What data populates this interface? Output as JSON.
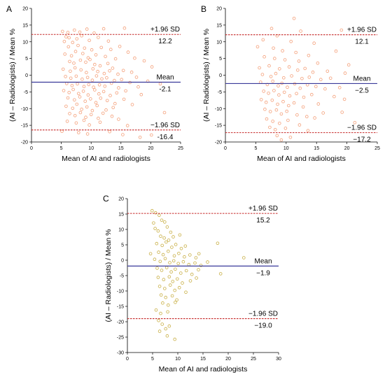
{
  "colors": {
    "axis": "#000000",
    "mean_line": "#3a3a9a",
    "panel_A_points": "#f4a07a",
    "panel_B_points": "#f4a07a",
    "panel_C_points": "#c9b048"
  },
  "chart_data": [
    {
      "panel_label": "A",
      "type": "scatter",
      "xlabel": "Mean of AI and radiologists",
      "ylabel": "(AI – Radiologists) / Mean %",
      "xlim": [
        0,
        25
      ],
      "ylim": [
        -20,
        20
      ],
      "xticks": [
        0,
        5,
        10,
        15,
        20,
        25
      ],
      "yticks": [
        -20,
        -15,
        -10,
        -5,
        0,
        5,
        10,
        15,
        20
      ],
      "lines": {
        "upper": {
          "value": 12.2,
          "label": "+1.96 SD",
          "value_text": "12.2"
        },
        "mean": {
          "value": -2.1,
          "label": "Mean",
          "value_text": "-2.1"
        },
        "lower": {
          "value": -16.4,
          "label": "−1.96 SD",
          "value_text": "-16.4"
        }
      },
      "points": [
        [
          5.2,
          13.1
        ],
        [
          6.1,
          12.8
        ],
        [
          5.8,
          11.5
        ],
        [
          7.2,
          13.5
        ],
        [
          8.1,
          12.9
        ],
        [
          9.3,
          13.8
        ],
        [
          10.5,
          12.6
        ],
        [
          12.1,
          13.9
        ],
        [
          15.6,
          14.1
        ],
        [
          6.3,
          11.2
        ],
        [
          5.5,
          10.1
        ],
        [
          6.9,
          9.8
        ],
        [
          7.6,
          10.9
        ],
        [
          8.4,
          11.8
        ],
        [
          9.7,
          10.4
        ],
        [
          11.2,
          11.3
        ],
        [
          12.9,
          10.2
        ],
        [
          6.2,
          8.5
        ],
        [
          7.8,
          8.9
        ],
        [
          8.9,
          8.1
        ],
        [
          10.1,
          7.6
        ],
        [
          11.7,
          8.3
        ],
        [
          13.3,
          7.7
        ],
        [
          14.8,
          8.6
        ],
        [
          16.2,
          6.9
        ],
        [
          5.6,
          6.3
        ],
        [
          6.7,
          5.8
        ],
        [
          7.4,
          7.1
        ],
        [
          8.6,
          6.5
        ],
        [
          9.5,
          5.2
        ],
        [
          10.8,
          6.1
        ],
        [
          12.4,
          5.6
        ],
        [
          14.1,
          4.9
        ],
        [
          17.3,
          5.1
        ],
        [
          18.9,
          4.3
        ],
        [
          20.2,
          2.5
        ],
        [
          6.4,
          4.1
        ],
        [
          7.1,
          3.6
        ],
        [
          8.2,
          4.5
        ],
        [
          9.1,
          3.9
        ],
        [
          9.8,
          4.7
        ],
        [
          10.6,
          3.2
        ],
        [
          11.5,
          2.8
        ],
        [
          12.8,
          3.5
        ],
        [
          13.6,
          2.1
        ],
        [
          15.4,
          1.4
        ],
        [
          5.3,
          1.8
        ],
        [
          6.5,
          1.2
        ],
        [
          7.3,
          2.2
        ],
        [
          8.3,
          1.6
        ],
        [
          9.2,
          0.8
        ],
        [
          10.3,
          1.9
        ],
        [
          11.1,
          1.1
        ],
        [
          12.2,
          0.5
        ],
        [
          13.1,
          1.3
        ],
        [
          14.5,
          0.3
        ],
        [
          16.8,
          0.9
        ],
        [
          17.6,
          -0.6
        ],
        [
          5.7,
          -0.4
        ],
        [
          6.6,
          -0.9
        ],
        [
          7.5,
          -0.3
        ],
        [
          8.5,
          -1.2
        ],
        [
          9.4,
          -0.7
        ],
        [
          10.2,
          -1.5
        ],
        [
          10.9,
          -0.2
        ],
        [
          11.8,
          -1.1
        ],
        [
          12.6,
          -0.8
        ],
        [
          13.9,
          -1.6
        ],
        [
          15.1,
          -1.3
        ],
        [
          16.5,
          -2.2
        ],
        [
          19.5,
          -1.8
        ],
        [
          5.9,
          -2.5
        ],
        [
          6.8,
          -3.1
        ],
        [
          7.7,
          -2.6
        ],
        [
          8.8,
          -3.4
        ],
        [
          9.6,
          -2.8
        ],
        [
          10.4,
          -3.6
        ],
        [
          11.4,
          -2.9
        ],
        [
          12.3,
          -3.3
        ],
        [
          13.4,
          -2.4
        ],
        [
          14.6,
          -3.8
        ],
        [
          17.9,
          -3.5
        ],
        [
          21.6,
          -2.6
        ],
        [
          5.4,
          -4.6
        ],
        [
          6.3,
          -5.2
        ],
        [
          7.0,
          -4.3
        ],
        [
          7.9,
          -5.5
        ],
        [
          8.7,
          -4.8
        ],
        [
          9.5,
          -5.9
        ],
        [
          10.6,
          -4.4
        ],
        [
          11.3,
          -5.6
        ],
        [
          12.1,
          -4.9
        ],
        [
          13.2,
          -6.1
        ],
        [
          14.3,
          -5.3
        ],
        [
          15.8,
          -4.7
        ],
        [
          18.4,
          -5.8
        ],
        [
          6.1,
          -6.8
        ],
        [
          7.2,
          -7.4
        ],
        [
          8.1,
          -6.5
        ],
        [
          9.0,
          -7.8
        ],
        [
          9.9,
          -7.1
        ],
        [
          10.8,
          -8.2
        ],
        [
          11.6,
          -6.9
        ],
        [
          12.7,
          -7.6
        ],
        [
          14.0,
          -8.5
        ],
        [
          15.5,
          -7.2
        ],
        [
          16.9,
          -8.8
        ],
        [
          5.8,
          -9.3
        ],
        [
          6.9,
          -9.9
        ],
        [
          7.6,
          -8.7
        ],
        [
          8.4,
          -10.2
        ],
        [
          9.3,
          -9.5
        ],
        [
          10.2,
          -10.6
        ],
        [
          11.0,
          -9.1
        ],
        [
          12.5,
          -10.4
        ],
        [
          13.7,
          -9.7
        ],
        [
          6.4,
          -11.5
        ],
        [
          7.3,
          -12.1
        ],
        [
          8.2,
          -11.2
        ],
        [
          9.1,
          -12.6
        ],
        [
          10.0,
          -11.8
        ],
        [
          11.2,
          -12.9
        ],
        [
          12.0,
          -11.4
        ],
        [
          13.5,
          -12.3
        ],
        [
          22.3,
          -11.2
        ],
        [
          6.0,
          -13.8
        ],
        [
          7.5,
          -14.3
        ],
        [
          8.8,
          -13.5
        ],
        [
          9.7,
          -14.9
        ],
        [
          11.5,
          -14.1
        ],
        [
          14.6,
          -13.2
        ],
        [
          16.1,
          -15.1
        ],
        [
          5.1,
          -16.8
        ],
        [
          7.9,
          -17.2
        ],
        [
          9.4,
          -17.6
        ],
        [
          13.1,
          -16.9
        ],
        [
          15.3,
          -17.8
        ],
        [
          18.2,
          -18.6
        ],
        [
          20.1,
          -17.9
        ]
      ]
    },
    {
      "panel_label": "B",
      "type": "scatter",
      "xlabel": "Mean of AI and radiologists",
      "ylabel": "(AI – Radiologists) / Mean %",
      "xlim": [
        0,
        25
      ],
      "ylim": [
        -20,
        20
      ],
      "xticks": [
        0,
        5,
        10,
        15,
        20,
        25
      ],
      "yticks": [
        -20,
        -15,
        -10,
        -5,
        0,
        5,
        10,
        15,
        20
      ],
      "lines": {
        "upper": {
          "value": 12.1,
          "label": "+1.96 SD",
          "value_text": "12.1"
        },
        "mean": {
          "value": -2.5,
          "label": "Mean",
          "value_text": "−2.5"
        },
        "lower": {
          "value": -17.2,
          "label": "−1.96 SD",
          "value_text": "−17.2"
        }
      },
      "points": [
        [
          11.3,
          17.0
        ],
        [
          7.6,
          14.0
        ],
        [
          12.4,
          13.2
        ],
        [
          19.1,
          13.5
        ],
        [
          8.5,
          11.8
        ],
        [
          6.2,
          10.6
        ],
        [
          10.8,
          10.1
        ],
        [
          14.6,
          9.6
        ],
        [
          5.3,
          8.5
        ],
        [
          7.9,
          8.1
        ],
        [
          9.4,
          7.3
        ],
        [
          11.6,
          6.8
        ],
        [
          13.7,
          5.9
        ],
        [
          18.2,
          7.2
        ],
        [
          6.4,
          5.5
        ],
        [
          8.1,
          5.0
        ],
        [
          9.8,
          4.6
        ],
        [
          12.1,
          4.2
        ],
        [
          15.2,
          3.6
        ],
        [
          20.3,
          3.1
        ],
        [
          5.6,
          2.2
        ],
        [
          7.2,
          2.8
        ],
        [
          8.9,
          1.9
        ],
        [
          10.5,
          2.5
        ],
        [
          11.9,
          1.5
        ],
        [
          13.1,
          2.0
        ],
        [
          14.4,
          0.9
        ],
        [
          16.8,
          1.2
        ],
        [
          19.7,
          0.6
        ],
        [
          6.1,
          0.2
        ],
        [
          7.5,
          -0.4
        ],
        [
          8.3,
          0.5
        ],
        [
          9.6,
          -0.8
        ],
        [
          10.9,
          -0.2
        ],
        [
          12.6,
          -1.0
        ],
        [
          13.8,
          -0.6
        ],
        [
          15.7,
          -1.3
        ],
        [
          17.3,
          -0.9
        ],
        [
          5.8,
          -2.1
        ],
        [
          6.9,
          -2.8
        ],
        [
          7.8,
          -1.8
        ],
        [
          8.7,
          -3.2
        ],
        [
          9.3,
          -2.4
        ],
        [
          10.2,
          -3.6
        ],
        [
          11.4,
          -2.6
        ],
        [
          12.3,
          -3.9
        ],
        [
          13.5,
          -2.9
        ],
        [
          14.9,
          -3.4
        ],
        [
          16.4,
          -4.1
        ],
        [
          18.8,
          -3.7
        ],
        [
          6.3,
          -4.8
        ],
        [
          7.1,
          -5.4
        ],
        [
          8.0,
          -4.6
        ],
        [
          8.8,
          -5.9
        ],
        [
          9.7,
          -5.1
        ],
        [
          10.6,
          -6.2
        ],
        [
          11.7,
          -5.5
        ],
        [
          12.9,
          -6.6
        ],
        [
          14.2,
          -5.8
        ],
        [
          17.9,
          -6.4
        ],
        [
          5.9,
          -7.3
        ],
        [
          6.7,
          -8.1
        ],
        [
          7.7,
          -7.5
        ],
        [
          8.6,
          -8.7
        ],
        [
          9.5,
          -7.9
        ],
        [
          10.4,
          -9.1
        ],
        [
          11.3,
          -8.3
        ],
        [
          12.8,
          -9.5
        ],
        [
          15.3,
          -8.6
        ],
        [
          19.6,
          -7.2
        ],
        [
          6.5,
          -10.2
        ],
        [
          7.4,
          -10.9
        ],
        [
          8.4,
          -10.4
        ],
        [
          9.2,
          -11.6
        ],
        [
          10.1,
          -10.8
        ],
        [
          11.8,
          -11.9
        ],
        [
          13.4,
          -12.4
        ],
        [
          16.1,
          -11.3
        ],
        [
          6.8,
          -13.1
        ],
        [
          7.8,
          -13.8
        ],
        [
          8.9,
          -14.4
        ],
        [
          10.3,
          -13.5
        ],
        [
          12.2,
          -14.9
        ],
        [
          14.7,
          -12.8
        ],
        [
          19.2,
          -11.1
        ],
        [
          7.3,
          -15.6
        ],
        [
          8.2,
          -16.3
        ],
        [
          9.9,
          -15.9
        ],
        [
          21.3,
          -14.2
        ],
        [
          8.5,
          -18.1
        ],
        [
          9.2,
          -19.4
        ],
        [
          10.7,
          -18.6
        ],
        [
          13.6,
          -16.6
        ]
      ]
    },
    {
      "panel_label": "C",
      "type": "scatter",
      "xlabel": "Mean of AI and radiologists",
      "ylabel": "(AI – Radiologists) / Mean %",
      "xlim": [
        0,
        30
      ],
      "ylim": [
        -30,
        20
      ],
      "xticks": [
        0,
        5,
        10,
        15,
        20,
        25,
        30
      ],
      "yticks": [
        -30,
        -25,
        -20,
        -15,
        -10,
        -5,
        0,
        5,
        10,
        15,
        20
      ],
      "lines": {
        "upper": {
          "value": 15.2,
          "label": "+1.96 SD",
          "value_text": "15.2"
        },
        "mean": {
          "value": -1.9,
          "label": "Mean",
          "value_text": "−1.9"
        },
        "lower": {
          "value": -19.0,
          "label": "−1.96 SD",
          "value_text": "−19.0"
        }
      },
      "points": [
        [
          4.9,
          16.1
        ],
        [
          5.6,
          15.4
        ],
        [
          6.3,
          14.6
        ],
        [
          5.2,
          12.1
        ],
        [
          6.8,
          13.0
        ],
        [
          7.4,
          12.4
        ],
        [
          5.5,
          10.3
        ],
        [
          6.1,
          9.5
        ],
        [
          7.9,
          10.8
        ],
        [
          8.6,
          9.1
        ],
        [
          6.6,
          7.8
        ],
        [
          7.3,
          7.2
        ],
        [
          8.2,
          6.5
        ],
        [
          9.1,
          7.6
        ],
        [
          10.4,
          8.2
        ],
        [
          5.8,
          5.4
        ],
        [
          6.9,
          4.8
        ],
        [
          7.7,
          5.9
        ],
        [
          8.8,
          4.2
        ],
        [
          9.6,
          5.1
        ],
        [
          10.7,
          3.8
        ],
        [
          11.5,
          4.6
        ],
        [
          4.6,
          2.1
        ],
        [
          6.2,
          2.6
        ],
        [
          7.1,
          1.8
        ],
        [
          8.1,
          2.9
        ],
        [
          9.3,
          1.4
        ],
        [
          10.2,
          2.2
        ],
        [
          11.3,
          1.1
        ],
        [
          12.4,
          1.7
        ],
        [
          13.6,
          0.8
        ],
        [
          14.2,
          2.1
        ],
        [
          17.9,
          5.5
        ],
        [
          23.1,
          0.8
        ],
        [
          5.4,
          0.3
        ],
        [
          6.5,
          -0.4
        ],
        [
          7.5,
          0.5
        ],
        [
          8.4,
          -0.8
        ],
        [
          9.2,
          -0.2
        ],
        [
          10.1,
          -1.1
        ],
        [
          11.1,
          -0.5
        ],
        [
          12.2,
          -1.4
        ],
        [
          13.4,
          -0.9
        ],
        [
          14.6,
          -1.7
        ],
        [
          15.9,
          -0.6
        ],
        [
          5.9,
          -2.6
        ],
        [
          6.8,
          -3.3
        ],
        [
          7.8,
          -2.4
        ],
        [
          8.7,
          -3.8
        ],
        [
          9.5,
          -2.9
        ],
        [
          10.6,
          -4.2
        ],
        [
          11.7,
          -3.4
        ],
        [
          12.8,
          -4.6
        ],
        [
          14.1,
          -3.1
        ],
        [
          18.5,
          -4.4
        ],
        [
          6.1,
          -5.6
        ],
        [
          7.2,
          -6.3
        ],
        [
          8.3,
          -5.4
        ],
        [
          9.0,
          -6.9
        ],
        [
          9.9,
          -6.1
        ],
        [
          10.9,
          -7.4
        ],
        [
          12.5,
          -6.7
        ],
        [
          13.7,
          -5.8
        ],
        [
          6.4,
          -8.5
        ],
        [
          7.4,
          -9.2
        ],
        [
          8.5,
          -8.1
        ],
        [
          9.4,
          -9.8
        ],
        [
          10.3,
          -8.9
        ],
        [
          11.6,
          -10.4
        ],
        [
          6.7,
          -11.3
        ],
        [
          7.6,
          -12.1
        ],
        [
          8.9,
          -11.6
        ],
        [
          9.8,
          -12.9
        ],
        [
          7.0,
          -13.9
        ],
        [
          8.1,
          -14.6
        ],
        [
          9.5,
          -13.7
        ],
        [
          5.7,
          -16.2
        ],
        [
          6.6,
          -17.3
        ],
        [
          8.0,
          -16.8
        ],
        [
          6.2,
          -19.6
        ],
        [
          6.9,
          -20.8
        ],
        [
          7.6,
          -22.3
        ],
        [
          8.3,
          -21.4
        ],
        [
          7.9,
          -24.6
        ],
        [
          9.4,
          -25.7
        ],
        [
          6.4,
          -23.1
        ]
      ]
    }
  ]
}
